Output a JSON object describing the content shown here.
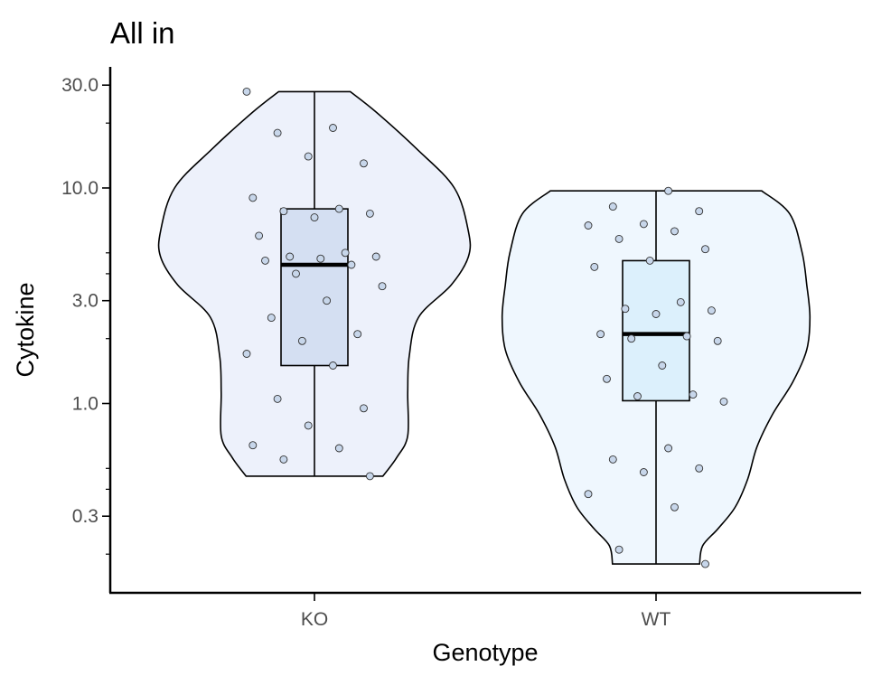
{
  "chart_data": {
    "type": "violin",
    "title": "All in",
    "xlabel": "Genotype",
    "ylabel": "Cytokine",
    "y_scale": "log10",
    "ylim": [
      0.17,
      36
    ],
    "y_ticks": [
      {
        "value": 0.3,
        "label": "0.3"
      },
      {
        "value": 1.0,
        "label": "1.0"
      },
      {
        "value": 3.0,
        "label": "3.0"
      },
      {
        "value": 10.0,
        "label": "10.0"
      },
      {
        "value": 30.0,
        "label": "30.0"
      }
    ],
    "y_minor_ticks": [
      0.2,
      0.4,
      0.5,
      2,
      4,
      5,
      20
    ],
    "grid": false,
    "legend": "none",
    "categories": [
      "KO",
      "WT"
    ],
    "groups": [
      {
        "category": "KO",
        "box": {
          "lower_whisker": 0.46,
          "q1": 1.5,
          "median": 4.4,
          "q3": 8.0,
          "upper_whisker": 28
        },
        "points": [
          28,
          19,
          18,
          13,
          14,
          9,
          8,
          7.8,
          7.6,
          7.3,
          6,
          5,
          4.8,
          4.8,
          4.7,
          4.6,
          4.4,
          4.0,
          3.5,
          3.0,
          2.5,
          2.1,
          1.95,
          1.7,
          1.5,
          1.05,
          0.95,
          0.79,
          0.64,
          0.62,
          0.55,
          0.46
        ],
        "fill": "#edf1fb",
        "box_fill": "#d4dff2"
      },
      {
        "category": "WT",
        "box": {
          "lower_whisker": 0.18,
          "q1": 1.03,
          "median": 2.1,
          "q3": 4.6,
          "upper_whisker": 9.7
        },
        "points": [
          9.7,
          8.2,
          7.8,
          6.8,
          6.7,
          6.3,
          5.8,
          5.2,
          4.6,
          4.3,
          2.95,
          2.75,
          2.7,
          2.6,
          2.1,
          2.05,
          2.0,
          1.95,
          1.5,
          1.3,
          1.1,
          1.08,
          1.02,
          0.62,
          0.55,
          0.5,
          0.48,
          0.38,
          0.33,
          0.21,
          0.18
        ],
        "fill": "#eff7fe",
        "box_fill": "#dcf0fc"
      }
    ],
    "point_fill": "#c7d6ea",
    "line_color": "#000000"
  }
}
